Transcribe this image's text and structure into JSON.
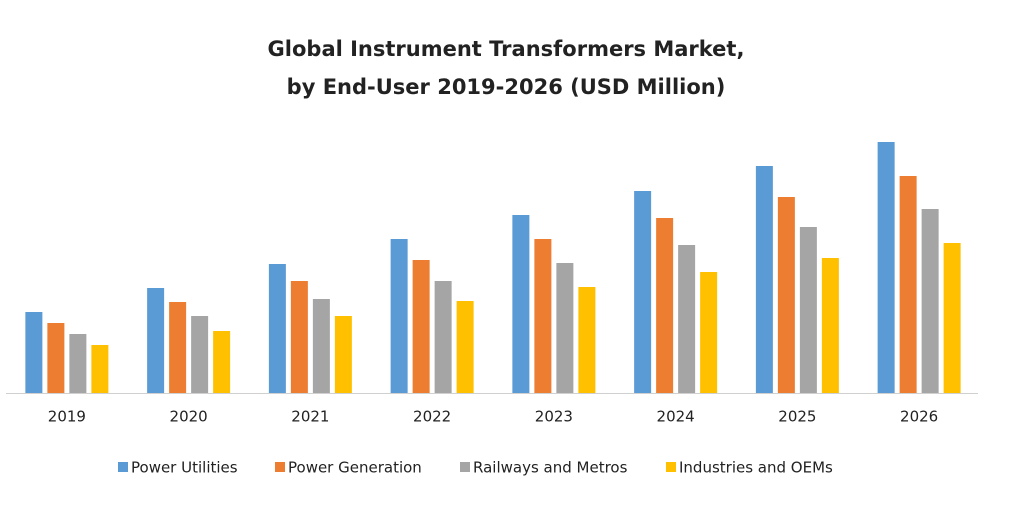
{
  "chart_data": {
    "type": "bar",
    "title": [
      "Global Instrument Transformers Market,",
      "by End-User 2019-2026 (USD Million)"
    ],
    "categories": [
      "2019",
      "2020",
      "2021",
      "2022",
      "2023",
      "2024",
      "2025",
      "2026"
    ],
    "series": [
      {
        "name": "Power Utilities",
        "color": "#5b9bd5",
        "values": [
          81,
          105,
          129,
          154,
          178,
          202,
          227,
          251
        ]
      },
      {
        "name": "Power Generation",
        "color": "#ed7d31",
        "values": [
          70,
          91,
          112,
          133,
          154,
          175,
          196,
          217
        ]
      },
      {
        "name": "Railways and Metros",
        "color": "#a5a5a5",
        "values": [
          59,
          77,
          94,
          112,
          130,
          148,
          166,
          184
        ]
      },
      {
        "name": "Industries and OEMs",
        "color": "#ffc000",
        "values": [
          48,
          62,
          77,
          92,
          106,
          121,
          135,
          150
        ]
      }
    ],
    "ylim": [
      0,
      260
    ],
    "grid": false,
    "legend": "bottom"
  }
}
